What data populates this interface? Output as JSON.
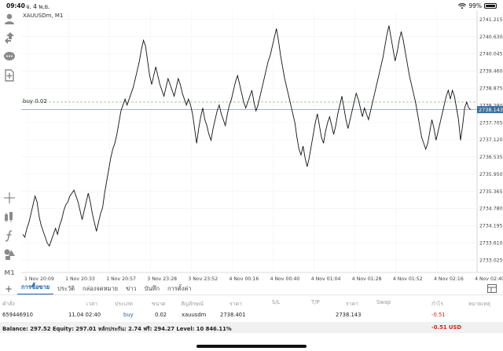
{
  "status_bar": {
    "time": "09:40",
    "date": "จ. 4 พ.ย.",
    "wifi_icon": "wifi-icon",
    "battery": "99%",
    "battery_level": 0.99
  },
  "toolbar": {
    "items": [
      {
        "name": "account-icon"
      },
      {
        "name": "trade-icon"
      },
      {
        "name": "chat-icon"
      },
      {
        "name": "new-order-icon"
      },
      {
        "name": "crosshair-icon"
      },
      {
        "name": "indicators-icon"
      },
      {
        "name": "function-icon"
      },
      {
        "name": "objects-icon"
      }
    ],
    "timeframe": "M1"
  },
  "chart": {
    "symbol": "XAUUSDm, M1",
    "position_label": "buy 0.02",
    "current_price": "2738.143",
    "price_ticks": [
      "2741.215",
      "2740.630",
      "2740.045",
      "2739.460",
      "2738.875",
      "2738.290",
      "2737.705",
      "2737.120",
      "2736.535",
      "2735.950",
      "2735.365",
      "2734.780",
      "2734.195",
      "2733.610",
      "2733.025"
    ],
    "time_ticks": [
      "1 Nov 20:09",
      "1 Nov 20:33",
      "1 Nov 20:57",
      "3 Nov 23:28",
      "3 Nov 23:52",
      "4 Nov 00:16",
      "4 Nov 00:40",
      "4 Nov 01:04",
      "4 Nov 01:28",
      "4 Nov 01:52",
      "4 Nov 02:16",
      "4 Nov 02:40"
    ]
  },
  "chart_data": {
    "type": "line",
    "ylim": [
      2732.6,
      2741.5
    ],
    "entry_price": 2738.401,
    "bid_price": 2738.143,
    "values": [
      2733.9,
      2733.8,
      2734.1,
      2734.3,
      2734.6,
      2734.9,
      2735.2,
      2735.0,
      2734.5,
      2734.2,
      2734.0,
      2733.8,
      2733.6,
      2733.5,
      2733.7,
      2733.9,
      2734.1,
      2733.9,
      2734.2,
      2734.4,
      2734.7,
      2734.9,
      2735.0,
      2735.2,
      2735.3,
      2735.4,
      2735.2,
      2735.0,
      2734.7,
      2734.4,
      2734.7,
      2735.0,
      2735.3,
      2735.0,
      2734.6,
      2734.3,
      2734.0,
      2734.3,
      2734.6,
      2734.8,
      2735.3,
      2735.7,
      2736.1,
      2736.5,
      2736.8,
      2737.0,
      2737.3,
      2737.7,
      2738.1,
      2738.3,
      2738.5,
      2738.3,
      2738.5,
      2738.7,
      2738.9,
      2739.2,
      2739.5,
      2739.8,
      2740.2,
      2740.5,
      2740.3,
      2739.8,
      2739.3,
      2739.0,
      2739.3,
      2739.6,
      2739.3,
      2739.0,
      2738.8,
      2738.6,
      2738.9,
      2739.2,
      2739.0,
      2738.8,
      2738.6,
      2738.9,
      2739.2,
      2739.0,
      2738.7,
      2738.5,
      2738.3,
      2738.5,
      2738.3,
      2738.0,
      2737.5,
      2737.0,
      2737.5,
      2737.9,
      2738.2,
      2737.8,
      2737.6,
      2737.3,
      2737.1,
      2737.5,
      2737.8,
      2738.1,
      2738.3,
      2738.0,
      2737.8,
      2737.6,
      2738.0,
      2738.3,
      2738.5,
      2738.8,
      2739.1,
      2739.3,
      2739.0,
      2738.7,
      2738.4,
      2738.2,
      2738.4,
      2738.6,
      2738.8,
      2738.4,
      2738.1,
      2738.3,
      2738.6,
      2738.9,
      2739.2,
      2739.5,
      2739.8,
      2740.0,
      2740.3,
      2740.6,
      2740.9,
      2740.5,
      2740.0,
      2739.6,
      2739.2,
      2738.9,
      2738.6,
      2738.3,
      2738.0,
      2737.7,
      2737.2,
      2736.8,
      2736.6,
      2736.9,
      2736.5,
      2736.2,
      2736.5,
      2736.9,
      2737.3,
      2737.7,
      2738.0,
      2737.6,
      2737.2,
      2737.0,
      2737.4,
      2737.7,
      2737.9,
      2737.6,
      2737.3,
      2737.6,
      2738.0,
      2738.3,
      2738.6,
      2738.2,
      2737.8,
      2737.5,
      2737.8,
      2738.1,
      2738.4,
      2738.7,
      2738.5,
      2738.2,
      2737.9,
      2738.2,
      2738.0,
      2737.8,
      2738.1,
      2738.4,
      2738.7,
      2739.0,
      2739.3,
      2739.6,
      2739.9,
      2740.3,
      2740.7,
      2741.0,
      2740.6,
      2740.2,
      2739.8,
      2740.1,
      2740.5,
      2740.8,
      2740.5,
      2740.1,
      2739.7,
      2739.3,
      2739.0,
      2738.7,
      2738.4,
      2738.0,
      2737.6,
      2737.2,
      2737.0,
      2736.8,
      2737.0,
      2737.4,
      2737.8,
      2737.5,
      2737.1,
      2737.4,
      2737.7,
      2738.0,
      2738.3,
      2738.6,
      2738.8,
      2738.5,
      2738.8,
      2738.6,
      2738.2,
      2737.8,
      2737.1,
      2737.6,
      2738.2,
      2738.4,
      2738.2,
      2738.14
    ]
  },
  "tabs": {
    "items": [
      "การซื้อขาย",
      "ประวัติ",
      "กล่องจดหมาย",
      "ข่าว",
      "บันทึก",
      "การตั้งค่า"
    ]
  },
  "orders_table": {
    "headers": [
      "คำสั่ง",
      "เวลา",
      "ประเภท",
      "ขนาด",
      "สัญลักษณ์",
      "ราคา",
      "S/L",
      "T/P",
      "ราคา",
      "Swap",
      "กำไร",
      "หมายเหตุ"
    ],
    "row": {
      "order": "659446910",
      "time": "11.04 02:40",
      "type": "buy",
      "size": "0.02",
      "symbol": "xauusdm",
      "open_price": "2738.401",
      "sl": "",
      "tp": "",
      "price": "2738.143",
      "swap": "",
      "profit": "-0.51",
      "comment": ""
    }
  },
  "balance_bar": {
    "text": "Balance: 297.52 Equity: 297.01 หลักประกัน: 2.74 ฟรี: 294.27 Level: 10 846.11%",
    "floating": "-0.51  USD"
  },
  "colors": {
    "price_line": "#111111",
    "entry_line": "#8fca8f",
    "bid_line": "#8a9aa8",
    "price_tag": "#3b6fa0",
    "accent": "#1a5fb4",
    "negative": "#d61f1f"
  }
}
